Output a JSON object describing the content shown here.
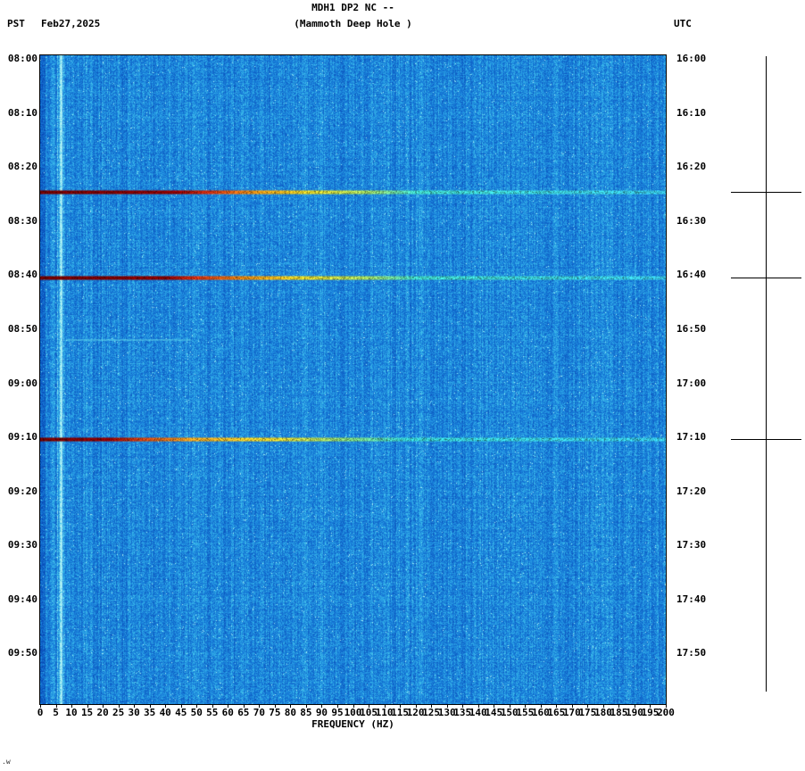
{
  "header": {
    "title": "MDH1 DP2 NC --",
    "subtitle": "(Mammoth Deep Hole )",
    "tz_left": "PST",
    "date": "Feb27,2025",
    "tz_right": "UTC"
  },
  "axes": {
    "x_label": "FREQUENCY (HZ)",
    "x_ticks": [
      "0",
      "5",
      "10",
      "15",
      "20",
      "25",
      "30",
      "35",
      "40",
      "45",
      "50",
      "55",
      "60",
      "65",
      "70",
      "75",
      "80",
      "85",
      "90",
      "95",
      "100",
      "105",
      "110",
      "115",
      "120",
      "125",
      "130",
      "135",
      "140",
      "145",
      "150",
      "155",
      "160",
      "165",
      "170",
      "175",
      "180",
      "185",
      "190",
      "195",
      "200"
    ],
    "left_ticks": [
      "08:00",
      "08:10",
      "08:20",
      "08:30",
      "08:40",
      "08:50",
      "09:00",
      "09:10",
      "09:20",
      "09:30",
      "09:40",
      "09:50"
    ],
    "right_ticks": [
      "16:00",
      "16:10",
      "16:20",
      "16:30",
      "16:40",
      "16:50",
      "17:00",
      "17:10",
      "17:20",
      "17:30",
      "17:40",
      "17:50"
    ]
  },
  "footer": {
    "mark": ".w"
  },
  "chart_data": {
    "type": "heatmap",
    "subtype": "seismic-spectrogram",
    "station": "MDH1 DP2 NC --",
    "station_name": "Mammoth Deep Hole",
    "date": "Feb27,2025",
    "x_range_hz": [
      0,
      200
    ],
    "x_tick_step_hz": 5,
    "time_axis": {
      "start_pst": "08:00",
      "end_pst": "10:00",
      "start_utc": "16:00",
      "end_utc": "18:00",
      "tick_interval_min": 10
    },
    "background": {
      "description": "broadband blue noise with vertical streak texture",
      "colormap_stops": [
        [
          0,
          "#0846b4"
        ],
        [
          0.45,
          "#1982dc"
        ],
        [
          0.75,
          "#3cbeeb"
        ],
        [
          1,
          "#aaf0f5"
        ]
      ],
      "bright_vertical_line_hz": 6.5,
      "dark_band_below_hz": 1.5
    },
    "events": [
      {
        "time_pst": "08:25",
        "time_utc": "16:25",
        "t_frac": 0.211,
        "strength": "strong",
        "marker": true,
        "description": "broadband event: dark red 0-45 Hz grading through orange/yellow to cyan at 200 Hz",
        "stops": [
          [
            0,
            "#700000"
          ],
          [
            0.22,
            "#8e0000"
          ],
          [
            0.27,
            "#d83010"
          ],
          [
            0.34,
            "#f09010"
          ],
          [
            0.43,
            "#ead828"
          ],
          [
            0.52,
            "#a8e060"
          ],
          [
            0.6,
            "#40d8c8"
          ],
          [
            1,
            "#38c8e8"
          ]
        ]
      },
      {
        "time_pst": "08:41",
        "time_utc": "16:41",
        "t_frac": 0.343,
        "strength": "strong",
        "marker": true,
        "description": "broadband event: dark red 0-42 Hz grading through orange/yellow to cyan at 200 Hz",
        "stops": [
          [
            0,
            "#700000"
          ],
          [
            0.2,
            "#8e0000"
          ],
          [
            0.25,
            "#d83010"
          ],
          [
            0.33,
            "#f09010"
          ],
          [
            0.42,
            "#ead828"
          ],
          [
            0.52,
            "#a8e060"
          ],
          [
            0.6,
            "#40d8c8"
          ],
          [
            1,
            "#38c8e8"
          ]
        ]
      },
      {
        "time_pst": "08:53",
        "time_utc": "16:53",
        "t_frac": 0.437,
        "strength": "weak",
        "marker": false,
        "description": "faint cyan smudge",
        "freq_span_hz": [
          8,
          48
        ]
      },
      {
        "time_pst": "09:11",
        "time_utc": "17:11",
        "t_frac": 0.592,
        "strength": "strong",
        "marker": true,
        "description": "broadband event: dark red 0-25 Hz grading through orange/yellow to cyan at 200 Hz",
        "stops": [
          [
            0,
            "#700000"
          ],
          [
            0.11,
            "#8e0000"
          ],
          [
            0.16,
            "#d04010"
          ],
          [
            0.24,
            "#f0a020"
          ],
          [
            0.38,
            "#e8d830"
          ],
          [
            0.5,
            "#80dc80"
          ],
          [
            0.58,
            "#38d0d0"
          ],
          [
            1,
            "#38c8e8"
          ]
        ]
      }
    ]
  }
}
